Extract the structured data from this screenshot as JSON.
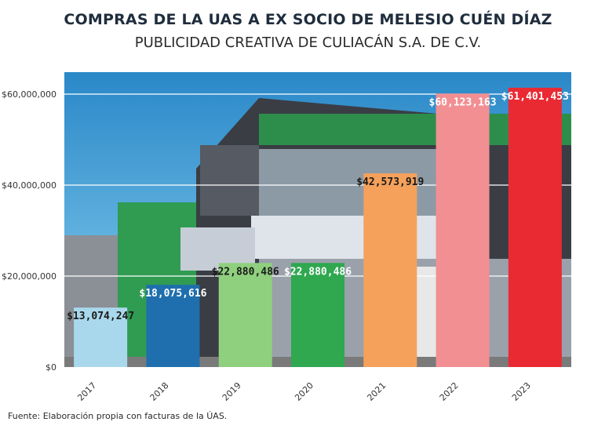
{
  "title": "COMPRAS DE LA UAS A EX SOCIO DE MELESIO CUÉN DÍAZ",
  "subtitle": "PUBLICIDAD CREATIVA DE CULIACÁN S.A. DE C.V.",
  "source": "Fuente: Elaboración propia con facturas de la ÚAS.",
  "chart_data": {
    "type": "bar",
    "title": "COMPRAS DE LA UAS A EX SOCIO DE MELESIO CUÉN DÍAZ",
    "subtitle": "PUBLICIDAD CREATIVA DE CULIACÁN S.A. DE C.V.",
    "xlabel": "",
    "ylabel": "",
    "categories": [
      "2017",
      "2018",
      "2019",
      "2020",
      "2021",
      "2022",
      "2023"
    ],
    "values": [
      13074247,
      18075616,
      22880486,
      22880486,
      42573919,
      60123163,
      61401453
    ],
    "data_labels": [
      "$13,074,247",
      "$18,075,616",
      "$22,880,486",
      "$22,880,486",
      "$42,573,919",
      "$60,123,163",
      "$61,401,453"
    ],
    "bar_colors": [
      "#a9d8ec",
      "#1f6fae",
      "#8fd07f",
      "#2fa84f",
      "#f5a15b",
      "#f28f93",
      "#ea2a33"
    ],
    "label_colors": [
      "#1a1a1a",
      "#ffffff",
      "#1a1a1a",
      "#ffffff",
      "#1a1a1a",
      "#ffffff",
      "#ffffff"
    ],
    "y_ticks": [
      0,
      20000000,
      40000000,
      60000000
    ],
    "y_tick_labels": [
      "$0",
      "$20,000,000",
      "$40,000,000",
      "$60,000,000"
    ],
    "ylim": [
      0,
      62000000
    ],
    "grid": true,
    "legend": "none"
  }
}
